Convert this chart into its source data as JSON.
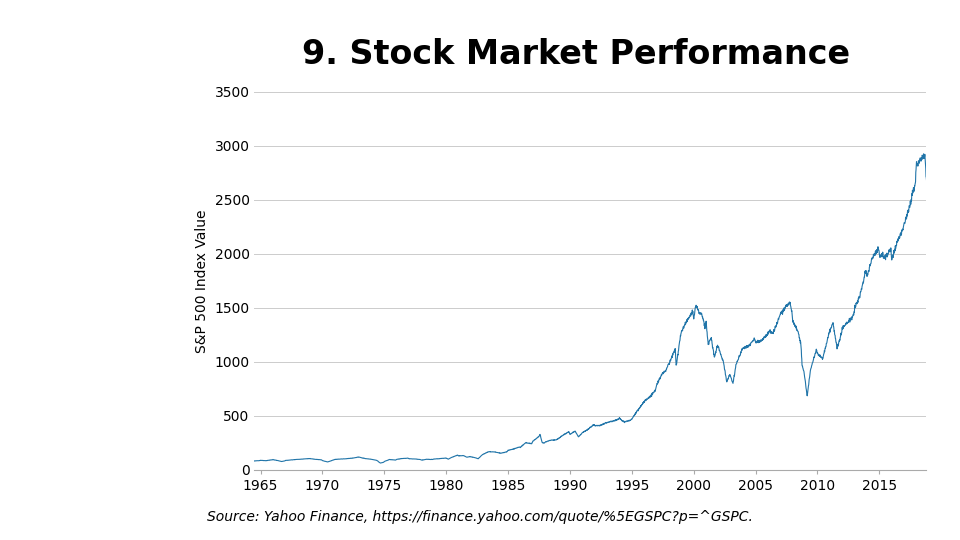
{
  "title": "9. Stock Market Performance",
  "ylabel": "S&P 500 Index Value",
  "source_text": "Source: Yahoo Finance, https://finance.yahoo.com/quote/%5EGSPC?p=^GSPC.",
  "line_color": "#2175a9",
  "line_width": 0.8,
  "background_color": "#ffffff",
  "xlim": [
    1964.5,
    2018.8
  ],
  "ylim": [
    0,
    3500
  ],
  "yticks": [
    0,
    500,
    1000,
    1500,
    2000,
    2500,
    3000,
    3500
  ],
  "xticks": [
    1965,
    1970,
    1975,
    1980,
    1985,
    1990,
    1995,
    2000,
    2005,
    2010,
    2015
  ],
  "title_fontsize": 24,
  "tick_fontsize": 10,
  "ylabel_fontsize": 10,
  "source_fontsize": 10,
  "sp500_monthly": {
    "1964-01": 76.45,
    "1964-03": 79.46,
    "1964-06": 81.69,
    "1964-09": 84.18,
    "1964-12": 84.75,
    "1965-01": 87.56,
    "1965-06": 84.12,
    "1965-12": 92.43,
    "1966-01": 94.06,
    "1966-06": 84.74,
    "1966-09": 76.56,
    "1966-12": 80.33,
    "1967-01": 86.61,
    "1967-06": 90.64,
    "1967-12": 96.47,
    "1968-01": 96.47,
    "1968-06": 99.58,
    "1968-12": 103.86,
    "1969-01": 103.01,
    "1969-06": 97.71,
    "1969-12": 92.06,
    "1970-01": 85.02,
    "1970-06": 72.72,
    "1970-12": 92.15,
    "1971-01": 95.88,
    "1971-06": 99.7,
    "1971-12": 102.09,
    "1972-01": 103.94,
    "1972-06": 107.67,
    "1972-12": 118.05,
    "1973-01": 116.03,
    "1973-06": 104.75,
    "1973-12": 97.55,
    "1974-01": 96.57,
    "1974-06": 86.0,
    "1974-09": 62.28,
    "1974-12": 68.56,
    "1975-01": 76.98,
    "1975-06": 95.19,
    "1975-12": 90.19,
    "1976-01": 96.86,
    "1976-06": 104.28,
    "1976-12": 107.46,
    "1977-01": 102.03,
    "1977-06": 100.48,
    "1977-12": 95.1,
    "1978-01": 89.25,
    "1978-06": 97.29,
    "1978-12": 96.11,
    "1979-01": 99.93,
    "1979-06": 102.91,
    "1979-12": 107.94,
    "1980-01": 107.94,
    "1980-03": 98.22,
    "1980-06": 114.24,
    "1980-12": 135.76,
    "1981-01": 129.55,
    "1981-06": 131.21,
    "1981-09": 116.18,
    "1981-12": 122.55,
    "1982-01": 120.4,
    "1982-06": 109.61,
    "1982-08": 102.42,
    "1982-12": 140.64,
    "1983-01": 145.3,
    "1983-06": 167.64,
    "1983-12": 164.93,
    "1984-01": 163.41,
    "1984-06": 153.18,
    "1984-12": 167.24,
    "1985-01": 179.63,
    "1985-06": 191.85,
    "1985-12": 211.28,
    "1986-01": 208.19,
    "1986-06": 250.84,
    "1986-12": 242.17,
    "1987-01": 264.51,
    "1987-07": 310.09,
    "1987-08": 329.8,
    "1987-10": 251.79,
    "1987-12": 247.08,
    "1988-01": 257.07,
    "1988-06": 273.5,
    "1988-12": 277.72,
    "1989-01": 285.41,
    "1989-06": 317.98,
    "1989-12": 353.4,
    "1990-01": 329.08,
    "1990-06": 358.02,
    "1990-09": 306.05,
    "1990-12": 330.22,
    "1991-01": 343.93,
    "1991-06": 371.16,
    "1991-12": 417.09,
    "1992-01": 408.78,
    "1992-06": 408.14,
    "1992-12": 435.71,
    "1993-01": 438.78,
    "1993-06": 450.53,
    "1993-12": 466.45,
    "1994-01": 481.61,
    "1994-04": 450.91,
    "1994-06": 444.27,
    "1994-12": 459.27,
    "1995-01": 470.42,
    "1995-06": 544.75,
    "1995-12": 615.93,
    "1996-01": 636.02,
    "1996-06": 670.63,
    "1996-12": 740.74,
    "1997-01": 786.16,
    "1997-06": 885.14,
    "1997-10": 921.85,
    "1997-12": 970.43,
    "1998-01": 980.28,
    "1998-07": 1120.67,
    "1998-08": 957.28,
    "1998-12": 1229.23,
    "1999-01": 1279.64,
    "1999-06": 1372.71,
    "1999-12": 1469.25,
    "2000-01": 1394.46,
    "2000-03": 1527.46,
    "2000-06": 1454.6,
    "2000-09": 1436.51,
    "2000-12": 1320.28,
    "2001-01": 1366.01,
    "2001-03": 1160.33,
    "2001-06": 1224.42,
    "2001-09": 1040.94,
    "2001-12": 1148.08,
    "2002-01": 1130.2,
    "2002-06": 989.82,
    "2002-09": 815.28,
    "2002-12": 879.82,
    "2003-01": 855.7,
    "2003-03": 800.73,
    "2003-06": 974.5,
    "2003-12": 1111.92,
    "2004-01": 1131.13,
    "2004-06": 1140.84,
    "2004-12": 1211.92,
    "2005-01": 1181.27,
    "2005-06": 1191.33,
    "2005-12": 1248.29,
    "2006-01": 1280.08,
    "2006-06": 1270.2,
    "2006-12": 1418.3,
    "2007-01": 1438.24,
    "2007-06": 1503.35,
    "2007-10": 1549.38,
    "2007-12": 1468.36,
    "2008-01": 1378.55,
    "2008-06": 1280.0,
    "2008-09": 1166.36,
    "2008-10": 968.75,
    "2008-12": 903.25,
    "2009-01": 825.88,
    "2009-03": 676.53,
    "2009-06": 919.32,
    "2009-12": 1115.1,
    "2010-01": 1073.87,
    "2010-06": 1030.71,
    "2010-12": 1257.64,
    "2011-01": 1286.12,
    "2011-04": 1363.61,
    "2011-08": 1119.46,
    "2011-12": 1257.6,
    "2012-01": 1312.41,
    "2012-06": 1362.16,
    "2012-12": 1426.19,
    "2013-01": 1498.11,
    "2013-06": 1606.28,
    "2013-12": 1848.36,
    "2014-01": 1782.59,
    "2014-06": 1960.23,
    "2014-12": 2058.9,
    "2015-01": 1994.99,
    "2015-08": 1972.18,
    "2015-12": 2043.94,
    "2016-01": 1940.24,
    "2016-06": 2098.86,
    "2016-12": 2238.83,
    "2017-01": 2278.87,
    "2017-06": 2423.41,
    "2017-12": 2673.61,
    "2018-01": 2823.81,
    "2018-09": 2913.98,
    "2018-12": 2506.85
  }
}
